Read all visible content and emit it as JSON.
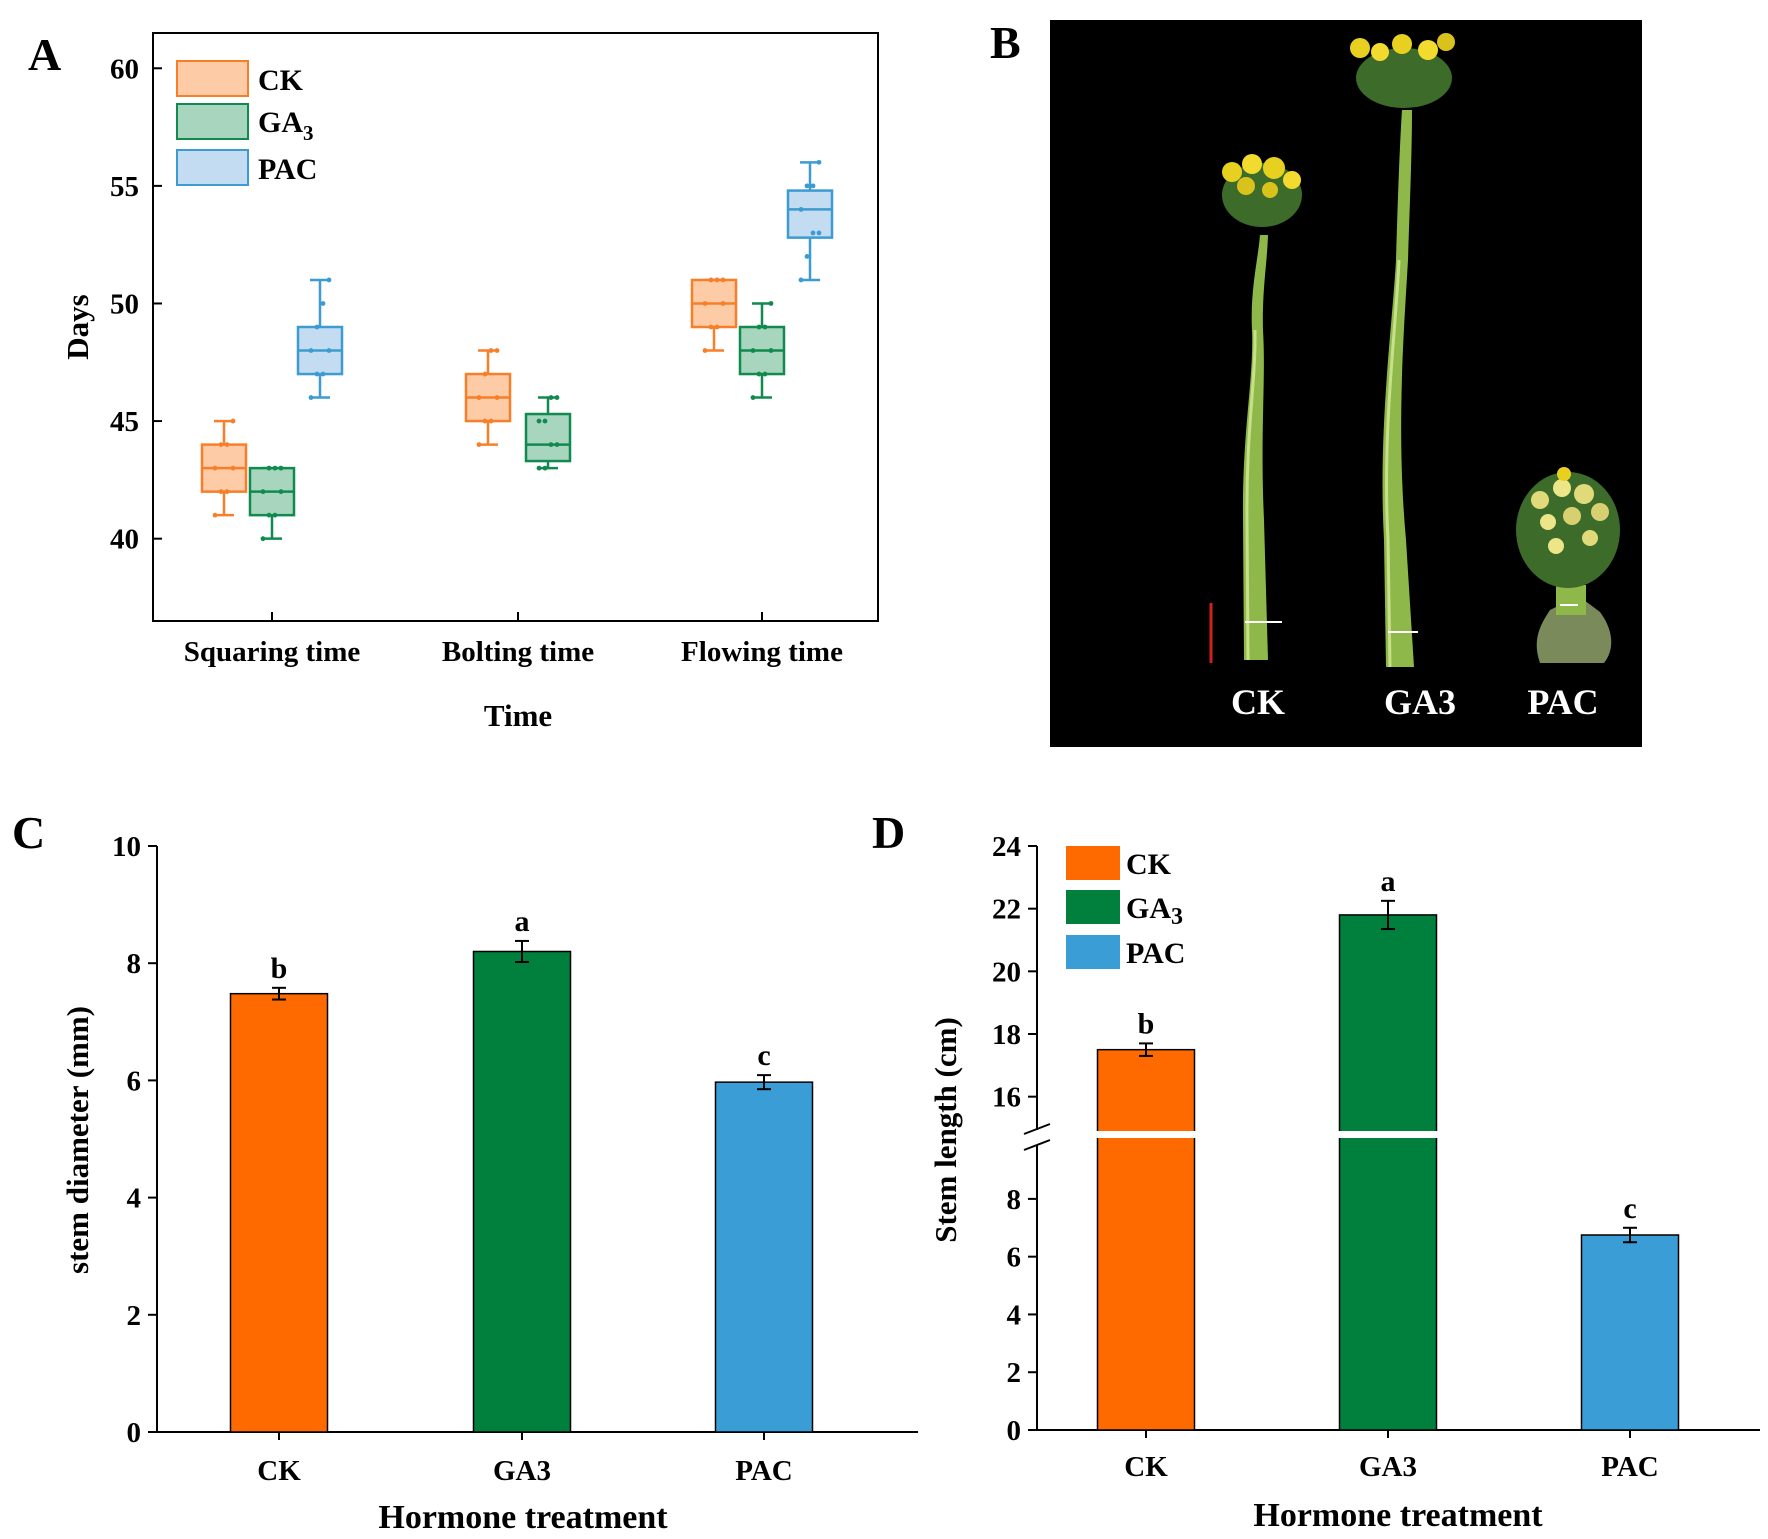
{
  "panels": {
    "a": "A",
    "b": "B",
    "c": "C",
    "d": "D"
  },
  "colors": {
    "ck": "#FF6A00",
    "ga3": "#007F3D",
    "pac": "#3A9DD6",
    "ck_box": "#F77F2A",
    "ga3_box": "#108A4E",
    "pac_box": "#3C9BD0",
    "ck_fill": "#FDCBA5",
    "ga3_fill": "#A7D5BE",
    "pac_fill": "#C4DCF1"
  },
  "chart_data": [
    {
      "id": "A",
      "type": "box",
      "title": "",
      "xlabel": "Time",
      "ylabel": "Days",
      "ylim": [
        36.5,
        61.5
      ],
      "yticks": [
        40,
        45,
        50,
        55,
        60
      ],
      "categories": [
        "Squaring time",
        "Bolting time",
        "Flowing time"
      ],
      "legend": {
        "labels": [
          "CK",
          "GA",
          "PAC"
        ],
        "subscript": [
          "",
          "3",
          ""
        ],
        "position": "top-left"
      },
      "series": [
        {
          "name": "CK",
          "boxes": [
            {
              "min": 41,
              "q1": 42,
              "median": 43,
              "q3": 44,
              "max": 45,
              "points": [
                41,
                42,
                42,
                43,
                43,
                44,
                44,
                45
              ]
            },
            {
              "min": 44,
              "q1": 45,
              "median": 46,
              "q3": 47,
              "max": 48,
              "points": [
                44,
                45,
                45,
                46,
                46,
                47,
                48,
                48
              ]
            },
            {
              "min": 48,
              "q1": 49,
              "median": 50,
              "q3": 51,
              "max": 51,
              "points": [
                48,
                49,
                49,
                50,
                50,
                51,
                51,
                51
              ]
            }
          ]
        },
        {
          "name": "GA3",
          "boxes": [
            {
              "min": 40,
              "q1": 41,
              "median": 42,
              "q3": 43,
              "max": 43,
              "points": [
                40,
                41,
                41,
                42,
                42,
                43,
                43,
                43
              ]
            },
            {
              "min": 43,
              "q1": 43.3,
              "median": 44,
              "q3": 45.3,
              "max": 46,
              "points": [
                43,
                43,
                44,
                44,
                45,
                45,
                46,
                46
              ]
            },
            {
              "min": 46,
              "q1": 47,
              "median": 48,
              "q3": 49,
              "max": 50,
              "points": [
                46,
                47,
                47,
                48,
                48,
                49,
                49,
                50
              ]
            }
          ]
        },
        {
          "name": "PAC",
          "boxes": [
            {
              "min": 46,
              "q1": 47,
              "median": 48,
              "q3": 49,
              "max": 51,
              "points": [
                46,
                47,
                47,
                48,
                48,
                49,
                50,
                51
              ]
            },
            null,
            {
              "min": 51,
              "q1": 52.8,
              "median": 54,
              "q3": 54.8,
              "max": 56,
              "points": [
                51,
                52,
                53,
                53,
                54,
                55,
                55,
                56
              ]
            }
          ]
        }
      ]
    },
    {
      "id": "C",
      "type": "bar",
      "xlabel": "Hormone treatment",
      "ylabel": "stem diameter (mm)",
      "ylim": [
        0,
        10
      ],
      "yticks": [
        0,
        2,
        4,
        6,
        8,
        10
      ],
      "categories": [
        "CK",
        "GA3",
        "PAC"
      ],
      "values": [
        7.48,
        8.2,
        5.97
      ],
      "errors": [
        0.1,
        0.18,
        0.12
      ],
      "letters": [
        "b",
        "a",
        "c"
      ]
    },
    {
      "id": "D",
      "type": "bar",
      "xlabel": "Hormone treatment",
      "ylabel": "Stem length (cm)",
      "yticks_lower": [
        0,
        2,
        4,
        6,
        8
      ],
      "yticks_upper": [
        16,
        18,
        20,
        22,
        24
      ],
      "axis_break": [
        9,
        15
      ],
      "categories": [
        "CK",
        "GA3",
        "PAC"
      ],
      "values": [
        17.5,
        21.8,
        6.75
      ],
      "errors": [
        0.2,
        0.45,
        0.25
      ],
      "letters": [
        "b",
        "a",
        "c"
      ],
      "legend": {
        "labels": [
          "CK",
          "GA",
          "PAC"
        ],
        "subscript": [
          "",
          "3",
          ""
        ],
        "position": "top-left"
      }
    }
  ],
  "photo": {
    "labels": [
      "CK",
      "GA3",
      "PAC"
    ]
  }
}
